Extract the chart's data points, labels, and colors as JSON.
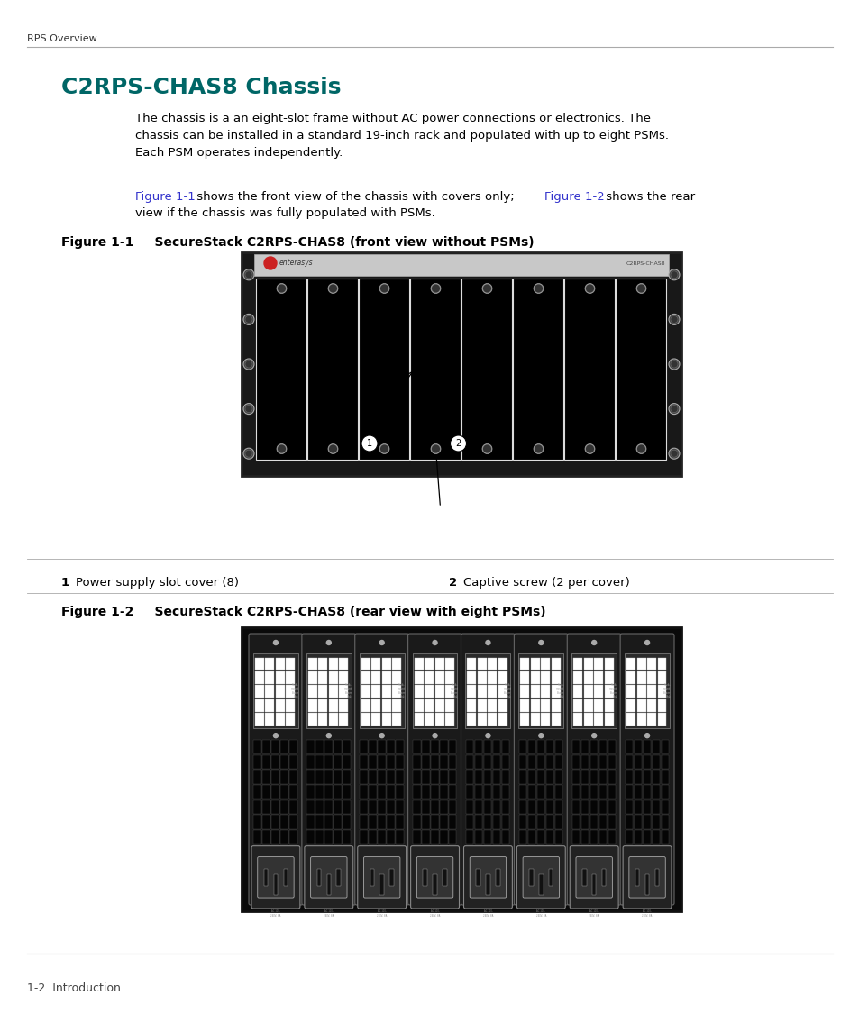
{
  "page_bg": "#ffffff",
  "top_label": "RPS Overview",
  "title": "C2RPS-CHAS8 Chassis",
  "title_color": "#006666",
  "body_text1": "The chassis is a an eight-slot frame without AC power connections or electronics. The\nchassis can be installed in a standard 19-inch rack and populated with up to eight PSMs.\nEach PSM operates independently.",
  "link_color": "#3333cc",
  "fig1_label_bold": "Figure 1-1",
  "fig1_label_rest": "    SecureStack C2RPS-CHAS8 (front view without PSMs)",
  "fig2_label_bold": "Figure 1-2",
  "fig2_label_rest": "    SecureStack C2RPS-CHAS8 (rear view with eight PSMs)",
  "callout1_num": "1",
  "callout1_text": "Power supply slot cover (8)",
  "callout2_num": "2",
  "callout2_text": "Captive screw (2 per cover)",
  "bottom_label": "1-2  Introduction",
  "top_line_color": "#999999",
  "fig1_ref": "Figure 1-1",
  "fig2_ref": "Figure 1-2",
  "fig1_ref2_pre": " shows the front view of the chassis with covers only; ",
  "fig1_ref2_post": " shows the rear\nview if the chassis was fully populated with PSMs."
}
